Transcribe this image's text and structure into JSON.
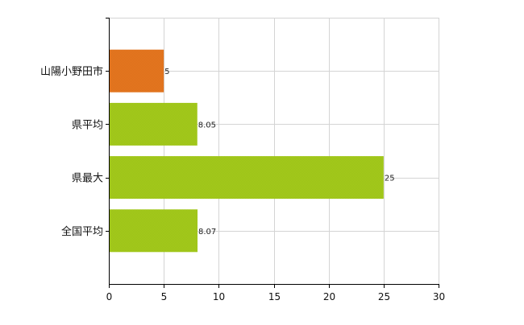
{
  "chart_data": {
    "type": "bar",
    "orientation": "horizontal",
    "categories": [
      "山陽小野田市",
      "県平均",
      "県最大",
      "全国平均"
    ],
    "values": [
      5,
      8.05,
      25,
      8.07
    ],
    "value_labels": [
      "5",
      "8.05",
      "25",
      "8.07"
    ],
    "bar_colors": [
      "#E8771F",
      "#A5CC1B",
      "#A5CC1B",
      "#A5CC1B"
    ],
    "xlim": [
      0,
      30
    ],
    "x_ticks": [
      0,
      5,
      10,
      15,
      20,
      25,
      30
    ],
    "x_tick_labels": [
      "0",
      "5",
      "10",
      "15",
      "20",
      "25",
      "30"
    ],
    "grid": true,
    "title": "",
    "xlabel": "",
    "ylabel": ""
  }
}
